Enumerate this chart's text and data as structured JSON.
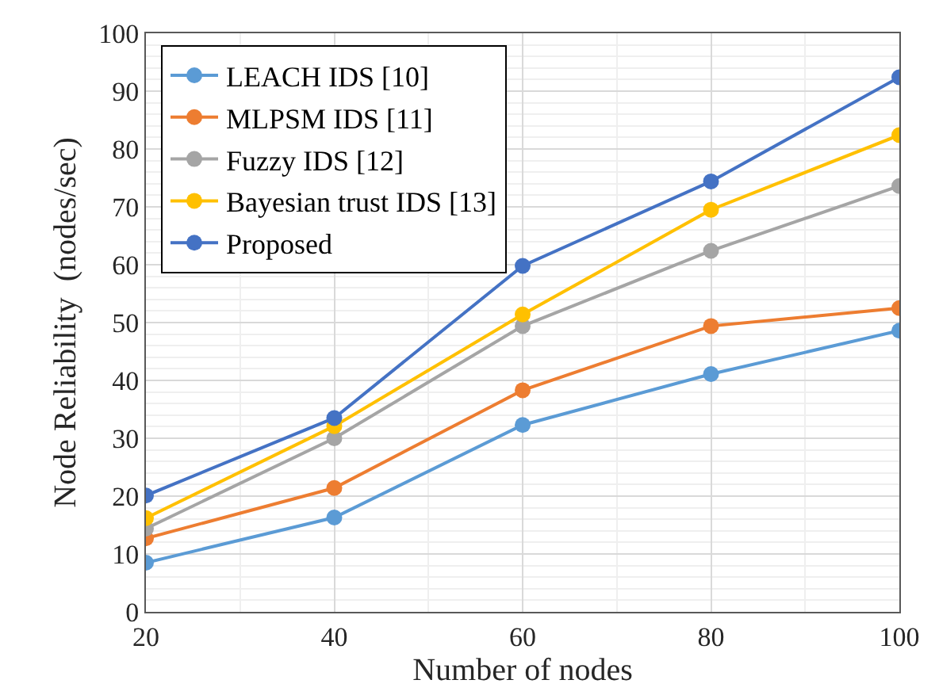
{
  "chart_data": {
    "type": "line",
    "xlabel": "Number of nodes",
    "ylabel": "Node Reliability  (nodes/sec)",
    "x": [
      20,
      40,
      60,
      80,
      100
    ],
    "series": [
      {
        "name": "LEACH IDS [10]",
        "color": "#5b9bd5",
        "values": [
          8.5,
          16.3,
          32.3,
          41.1,
          48.6
        ]
      },
      {
        "name": "MLPSM IDS [11]",
        "color": "#ed7d31",
        "values": [
          12.7,
          21.4,
          38.3,
          49.4,
          52.5
        ]
      },
      {
        "name": "Fuzzy IDS [12]",
        "color": "#a5a5a5",
        "values": [
          14.4,
          30.0,
          49.4,
          62.4,
          73.6
        ]
      },
      {
        "name": "Bayesian trust IDS [13]",
        "color": "#ffc000",
        "values": [
          16.2,
          32.1,
          51.4,
          69.5,
          82.4
        ]
      },
      {
        "name": "Proposed",
        "color": "#4472c4",
        "values": [
          20.1,
          33.5,
          59.8,
          74.4,
          92.4
        ]
      }
    ],
    "xlim": [
      20,
      100
    ],
    "xticks": [
      20,
      40,
      60,
      80,
      100
    ],
    "ylim": [
      0,
      100
    ],
    "yticks": [
      0,
      10,
      20,
      30,
      40,
      50,
      60,
      70,
      80,
      90,
      100
    ],
    "grid": true,
    "legend": "top left",
    "marker": "circle",
    "line_style": "solid"
  }
}
